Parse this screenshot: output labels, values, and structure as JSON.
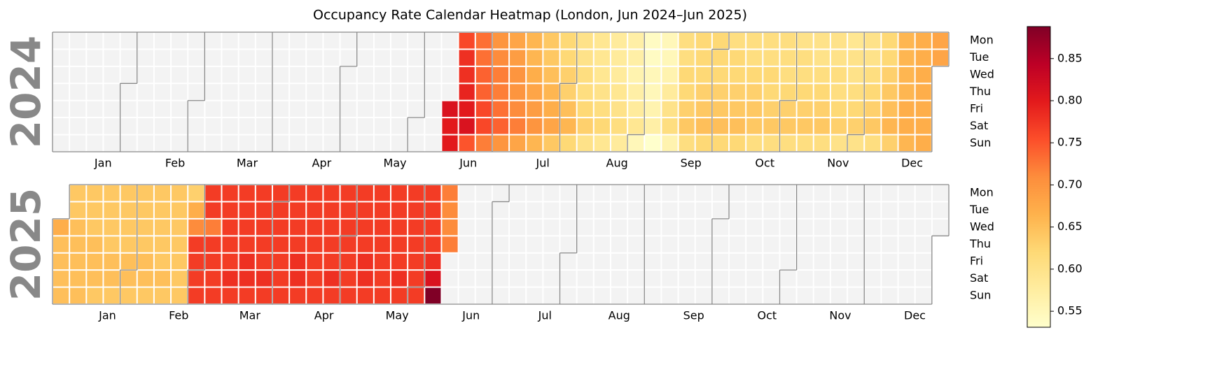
{
  "chart_data": {
    "type": "calendar_heatmap",
    "title": "Occupancy Rate Calendar Heatmap (London, Jun 2024–Jun 2025)",
    "weekdays": [
      "Mon",
      "Tue",
      "Wed",
      "Thu",
      "Fri",
      "Sat",
      "Sun"
    ],
    "months": [
      "Jan",
      "Feb",
      "Mar",
      "Apr",
      "May",
      "Jun",
      "Jul",
      "Aug",
      "Sep",
      "Oct",
      "Nov",
      "Dec"
    ],
    "colormap": "YlOrRd",
    "clim": [
      0.531,
      0.888
    ],
    "cticks": [
      0.55,
      {
        "value": 0.6,
        "label": "0.60"
      },
      0.65,
      {
        "value": 0.7,
        "label": "0.70"
      },
      0.75,
      {
        "value": 0.8,
        "label": "0.80"
      },
      0.85
    ],
    "years": [
      {
        "year": "2024",
        "values": [
          null,
          null,
          null,
          null,
          null,
          null,
          null,
          null,
          null,
          null,
          null,
          null,
          null,
          null,
          null,
          null,
          null,
          null,
          null,
          null,
          null,
          null,
          null,
          null,
          null,
          null,
          null,
          null,
          null,
          null,
          null,
          null,
          null,
          null,
          null,
          null,
          null,
          null,
          null,
          null,
          null,
          null,
          null,
          null,
          null,
          null,
          null,
          null,
          null,
          null,
          null,
          null,
          null,
          null,
          null,
          null,
          null,
          null,
          null,
          null,
          null,
          null,
          null,
          null,
          null,
          null,
          null,
          null,
          null,
          null,
          null,
          null,
          null,
          null,
          null,
          null,
          null,
          null,
          null,
          null,
          null,
          null,
          null,
          null,
          null,
          null,
          null,
          null,
          null,
          null,
          null,
          null,
          null,
          null,
          null,
          null,
          null,
          null,
          null,
          null,
          null,
          null,
          null,
          null,
          null,
          null,
          null,
          null,
          null,
          null,
          null,
          null,
          null,
          null,
          null,
          null,
          null,
          null,
          null,
          null,
          null,
          null,
          null,
          null,
          null,
          null,
          null,
          null,
          null,
          null,
          null,
          null,
          null,
          null,
          null,
          null,
          null,
          null,
          null,
          null,
          null,
          null,
          null,
          null,
          null,
          null,
          null,
          null,
          null,
          null,
          null,
          null,
          null,
          null,
          null,
          null,
          null,
          null,
          null,
          null,
          null,
          null,
          null,
          null,
          null,
          0.81,
          0.8,
          0.8,
          0.76,
          0.78,
          0.78,
          0.79,
          0.8,
          0.81,
          0.75,
          0.73,
          0.73,
          0.74,
          0.74,
          0.76,
          0.76,
          0.72,
          0.7,
          0.71,
          0.72,
          0.72,
          0.73,
          0.74,
          0.7,
          0.68,
          0.69,
          0.7,
          0.7,
          0.71,
          0.72,
          0.68,
          0.66,
          0.66,
          0.67,
          0.68,
          0.69,
          0.7,
          0.66,
          0.64,
          0.64,
          0.65,
          0.66,
          0.67,
          0.68,
          0.64,
          0.62,
          0.62,
          0.63,
          0.63,
          0.65,
          0.66,
          0.62,
          0.6,
          0.6,
          0.61,
          0.61,
          0.62,
          0.63,
          0.6,
          0.59,
          0.59,
          0.59,
          0.6,
          0.61,
          0.62,
          0.59,
          0.58,
          0.58,
          0.58,
          0.59,
          0.6,
          0.61,
          0.58,
          0.57,
          0.57,
          0.56,
          0.57,
          0.58,
          0.59,
          0.55,
          0.54,
          0.54,
          0.55,
          0.55,
          0.56,
          0.57,
          0.53,
          0.55,
          0.55,
          0.56,
          0.58,
          0.6,
          0.61,
          0.56,
          0.61,
          0.61,
          0.62,
          0.62,
          0.63,
          0.64,
          0.61,
          0.62,
          0.62,
          0.62,
          0.63,
          0.64,
          0.65,
          0.62,
          0.62,
          0.62,
          0.62,
          0.63,
          0.64,
          0.65,
          0.62,
          0.61,
          0.62,
          0.62,
          0.63,
          0.64,
          0.65,
          0.62,
          0.61,
          0.61,
          0.62,
          0.63,
          0.64,
          0.64,
          0.61,
          0.61,
          0.61,
          0.62,
          0.62,
          0.63,
          0.64,
          0.61,
          0.61,
          0.61,
          0.61,
          0.62,
          0.63,
          0.64,
          0.61,
          0.6,
          0.61,
          0.61,
          0.62,
          0.63,
          0.64,
          0.61,
          0.6,
          0.6,
          0.61,
          0.62,
          0.63,
          0.64,
          0.61,
          0.6,
          0.6,
          0.61,
          0.61,
          0.62,
          0.63,
          0.6,
          0.59,
          0.6,
          0.6,
          0.61,
          0.62,
          0.63,
          0.6,
          0.6,
          0.6,
          0.61,
          0.62,
          0.63,
          0.64,
          0.61,
          0.62,
          0.62,
          0.63,
          0.64,
          0.65,
          0.66,
          0.63,
          0.66,
          0.66,
          0.66,
          0.66,
          0.67,
          0.67,
          0.66,
          0.67,
          0.67,
          0.67,
          0.67,
          0.67,
          0.67,
          0.67,
          0.68,
          0.68
        ]
      },
      {
        "year": "2025",
        "values": [
          0.67,
          0.65,
          0.65,
          0.65,
          0.65,
          0.64,
          0.64,
          0.65,
          0.65,
          0.65,
          0.65,
          0.65,
          0.64,
          0.64,
          0.64,
          0.65,
          0.65,
          0.65,
          0.64,
          0.64,
          0.64,
          0.64,
          0.64,
          0.65,
          0.65,
          0.64,
          0.64,
          0.64,
          0.64,
          0.64,
          0.65,
          0.65,
          0.64,
          0.64,
          0.64,
          0.64,
          0.64,
          0.65,
          0.65,
          0.64,
          0.64,
          0.64,
          0.64,
          0.64,
          0.64,
          0.65,
          0.64,
          0.64,
          0.64,
          0.64,
          0.64,
          0.64,
          0.64,
          0.64,
          0.63,
          0.67,
          0.71,
          0.77,
          0.77,
          0.77,
          0.77,
          0.77,
          0.77,
          0.72,
          0.77,
          0.77,
          0.77,
          0.77,
          0.77,
          0.77,
          0.77,
          0.77,
          0.77,
          0.78,
          0.77,
          0.77,
          0.77,
          0.77,
          0.77,
          0.78,
          0.78,
          0.77,
          0.77,
          0.77,
          0.77,
          0.77,
          0.77,
          0.78,
          0.77,
          0.77,
          0.77,
          0.77,
          0.77,
          0.77,
          0.77,
          0.77,
          0.77,
          0.77,
          0.77,
          0.77,
          0.78,
          0.78,
          0.77,
          0.77,
          0.77,
          0.77,
          0.77,
          0.77,
          0.77,
          0.77,
          0.77,
          0.77,
          0.77,
          0.77,
          0.77,
          0.78,
          0.77,
          0.77,
          0.77,
          0.77,
          0.77,
          0.77,
          0.77,
          0.77,
          0.77,
          0.77,
          0.77,
          0.77,
          0.78,
          0.78,
          0.77,
          0.77,
          0.77,
          0.77,
          0.77,
          0.77,
          0.77,
          0.77,
          0.77,
          0.77,
          0.77,
          0.77,
          0.77,
          0.78,
          0.77,
          0.77,
          0.77,
          0.77,
          0.77,
          0.77,
          0.77,
          0.77,
          0.77,
          0.77,
          0.77,
          0.77,
          0.78,
          0.81,
          0.888,
          0.72,
          0.71,
          0.71,
          0.72
        ]
      }
    ]
  }
}
